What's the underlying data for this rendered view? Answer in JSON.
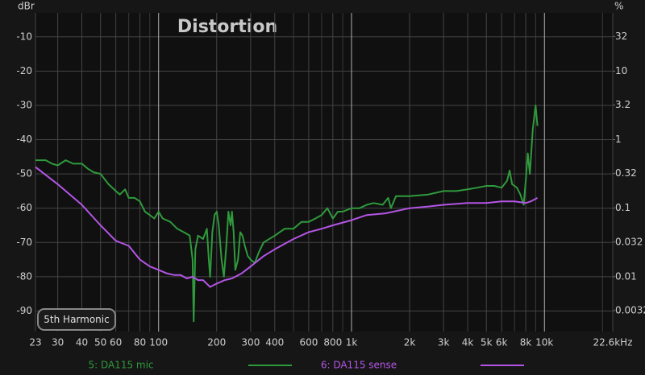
{
  "chart_data": {
    "type": "line",
    "title": "Distortion",
    "ylabel": "dBr",
    "y2label": "%",
    "xscale": "log",
    "y2scale": "log",
    "grid": true,
    "xlim": [
      23,
      22600
    ],
    "ylim": [
      -96,
      -3
    ],
    "y2lim": [
      0.00158,
      70.8
    ],
    "xticks": [
      23,
      30,
      40,
      50,
      60,
      80,
      100,
      200,
      300,
      400,
      600,
      800,
      {
        "value": 1000,
        "label": "1k"
      },
      {
        "value": 2000,
        "label": "2k"
      },
      {
        "value": 3000,
        "label": "3k"
      },
      {
        "value": 4000,
        "label": "4k"
      },
      {
        "value": 5000,
        "label": "5k"
      },
      {
        "value": 6000,
        "label": "6k"
      },
      {
        "value": 8000,
        "label": "8k"
      },
      {
        "value": 10000,
        "label": "10k"
      },
      {
        "value": 22600,
        "label": "22.6kHz"
      }
    ],
    "xminor": [
      70,
      90,
      500,
      700,
      900,
      7000,
      9000,
      20000
    ],
    "yticks": [
      -10,
      -20,
      -30,
      -40,
      -50,
      -60,
      -70,
      -80,
      -90
    ],
    "y2ticks": [
      32,
      10,
      3.2,
      1,
      0.32,
      0.1,
      0.032,
      0.01,
      0.0032
    ],
    "series": [
      {
        "name": "5: DA115 mic",
        "color": "#2f9a3c",
        "x": [
          23,
          26,
          28,
          30,
          33,
          36,
          40,
          43,
          46,
          50,
          55,
          60,
          63,
          67,
          70,
          75,
          80,
          85,
          90,
          95,
          100,
          105,
          115,
          125,
          135,
          145,
          150,
          152,
          155,
          160,
          170,
          178,
          182,
          185,
          190,
          195,
          200,
          205,
          212,
          218,
          225,
          230,
          236,
          240,
          245,
          250,
          258,
          265,
          272,
          280,
          290,
          300,
          315,
          330,
          350,
          400,
          450,
          500,
          550,
          600,
          650,
          700,
          750,
          800,
          850,
          900,
          1000,
          1100,
          1200,
          1300,
          1450,
          1550,
          1600,
          1700,
          2000,
          2500,
          3000,
          3500,
          4000,
          4500,
          5000,
          5500,
          6000,
          6400,
          6600,
          6800,
          7200,
          7500,
          7800,
          8000,
          8200,
          8400,
          8700,
          9000,
          9200
        ],
        "values": [
          -46,
          -46,
          -47,
          -47.5,
          -46,
          -47,
          -47,
          -48.5,
          -49.5,
          -50,
          -53,
          -55,
          -56,
          -54.5,
          -57,
          -57,
          -58,
          -61,
          -62,
          -63,
          -61,
          -63,
          -64,
          -66,
          -67,
          -68,
          -75,
          -93,
          -72,
          -68,
          -69,
          -66,
          -75,
          -80,
          -67,
          -62,
          -61,
          -65,
          -75,
          -80,
          -70,
          -61,
          -65,
          -61,
          -67,
          -78,
          -75,
          -67,
          -68,
          -71,
          -74,
          -75,
          -76,
          -73,
          -70,
          -68,
          -66,
          -66,
          -64,
          -64,
          -63,
          -62,
          -60,
          -63,
          -61,
          -61,
          -60,
          -60,
          -59,
          -58.5,
          -59,
          -57,
          -60,
          -56.5,
          -56.5,
          -56,
          -55,
          -55,
          -54.5,
          -54,
          -53.5,
          -53.5,
          -54,
          -52,
          -49,
          -53,
          -54,
          -56,
          -59,
          -52,
          -44,
          -50,
          -37,
          -30,
          -36
        ]
      },
      {
        "name": "6: DA115 sense",
        "color": "#b455e6",
        "x": [
          23,
          30,
          40,
          50,
          60,
          70,
          80,
          90,
          100,
          110,
          120,
          130,
          140,
          150,
          160,
          170,
          185,
          200,
          220,
          240,
          270,
          300,
          350,
          400,
          500,
          600,
          700,
          800,
          1000,
          1200,
          1500,
          2000,
          2500,
          3000,
          4000,
          5000,
          6000,
          7000,
          8000,
          8500,
          9200
        ],
        "values": [
          -48,
          -53,
          -59,
          -65,
          -69.5,
          -71,
          -75,
          -77,
          -78,
          -79,
          -79.5,
          -79.5,
          -80.5,
          -80,
          -81,
          -81,
          -83,
          -82,
          -81,
          -80.5,
          -79,
          -77,
          -74,
          -72,
          -69,
          -67,
          -66,
          -65,
          -63.5,
          -62,
          -61.5,
          -60,
          -59.5,
          -59,
          -58.5,
          -58.5,
          -58,
          -58,
          -58.5,
          -58,
          -57
        ]
      }
    ]
  },
  "controls": {
    "harmonic_button": "5th Harmonic"
  }
}
